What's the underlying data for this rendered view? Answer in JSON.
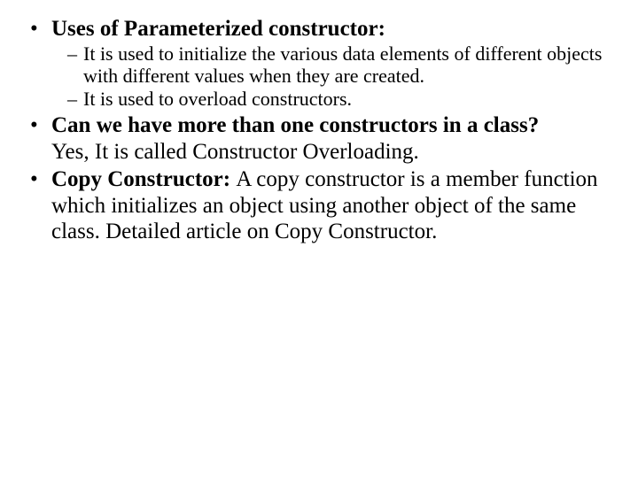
{
  "text_color": "#000000",
  "background_color": "#ffffff",
  "font_family": "Times New Roman",
  "body_fontsize_pt": 25,
  "sub_fontsize_pt": 22,
  "bullets": {
    "b1": {
      "heading": "Uses of Parameterized constructor:",
      "sub1": "It is used to initialize the various data elements of different objects with different values when they are created.",
      "sub2": "It is used to overload constructors."
    },
    "b2": {
      "heading": "Can we have more than one constructors in a class?",
      "body": "Yes, It is called Constructor Overloading."
    },
    "b3": {
      "heading": "Copy Constructor: ",
      "body": "A copy constructor is a member function which initializes an object using another object of the same class. Detailed article on Copy Constructor."
    }
  }
}
